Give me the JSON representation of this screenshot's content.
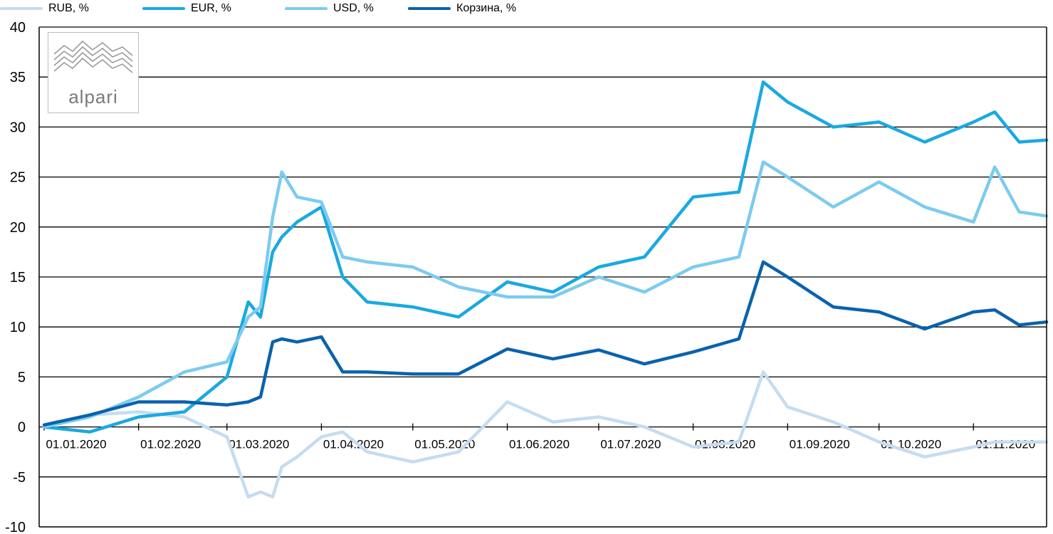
{
  "legend": [
    {
      "label": "RUB, %",
      "color": "#c5dcf0"
    },
    {
      "label": "EUR, %",
      "color": "#1aa9e0"
    },
    {
      "label": "USD, %",
      "color": "#7ccbef"
    },
    {
      "label": "Корзина, %",
      "color": "#0a62ad"
    }
  ],
  "logo": {
    "text": "alpari"
  },
  "chart_data": {
    "type": "line",
    "ylim": [
      -10,
      40
    ],
    "yticks": [
      40,
      35,
      30,
      25,
      20,
      15,
      10,
      5,
      0,
      -5,
      -10
    ],
    "xticks": [
      "01.01.2020",
      "01.02.2020",
      "01.03.2020",
      "01.04.2020",
      "01.05.2020",
      "01.06.2020",
      "01.07.2020",
      "01.08.2020",
      "01.09.2020",
      "01.10.2020",
      "01.11.2020"
    ],
    "grid": true,
    "x": [
      "2020-01-01",
      "2020-01-16",
      "2020-02-01",
      "2020-02-16",
      "2020-03-01",
      "2020-03-08",
      "2020-03-12",
      "2020-03-16",
      "2020-03-19",
      "2020-03-24",
      "2020-04-01",
      "2020-04-08",
      "2020-04-16",
      "2020-05-01",
      "2020-05-16",
      "2020-06-01",
      "2020-06-16",
      "2020-07-01",
      "2020-07-16",
      "2020-08-01",
      "2020-08-16",
      "2020-08-24",
      "2020-09-01",
      "2020-09-16",
      "2020-10-01",
      "2020-10-16",
      "2020-11-01",
      "2020-11-08",
      "2020-11-16",
      "2020-11-25"
    ],
    "series": [
      {
        "name": "RUB, %",
        "color": "#c5dcf0",
        "values": [
          0,
          1.2,
          1.5,
          1,
          -1,
          -7,
          -6.5,
          -7,
          -4,
          -3,
          -1,
          -0.5,
          -2.5,
          -3.5,
          -2.5,
          2.5,
          0.5,
          1,
          0,
          -2,
          -1.5,
          5.5,
          2,
          0.5,
          -1.5,
          -3,
          -2,
          -1.5,
          -1.5,
          -1.5
        ]
      },
      {
        "name": "EUR, %",
        "color": "#1aa9e0",
        "values": [
          0,
          -0.5,
          1,
          1.5,
          5,
          12.5,
          11,
          17.5,
          19,
          20.5,
          22,
          15,
          12.5,
          12,
          11,
          14.5,
          13.5,
          16,
          17,
          23,
          23.5,
          34.5,
          32.5,
          30,
          30.5,
          28.5,
          30.5,
          31.5,
          28.5,
          28.7
        ]
      },
      {
        "name": "USD, %",
        "color": "#7ccbef",
        "values": [
          0,
          1,
          3,
          5.5,
          6.5,
          11,
          12,
          21,
          25.5,
          23,
          22.5,
          17,
          16.5,
          16,
          14,
          13,
          13,
          15,
          13.5,
          16,
          17,
          26.5,
          25,
          22,
          24.5,
          22,
          20.5,
          26,
          21.5,
          21.1
        ]
      },
      {
        "name": "Корзина, %",
        "color": "#0a62ad",
        "values": [
          0.2,
          1.2,
          2.5,
          2.5,
          2.2,
          2.5,
          3,
          8.5,
          8.8,
          8.5,
          9,
          5.5,
          5.5,
          5.3,
          5.3,
          7.8,
          6.8,
          7.7,
          6.3,
          7.5,
          8.8,
          16.5,
          15,
          12,
          11.5,
          9.8,
          11.5,
          11.7,
          10.2,
          10.5
        ]
      }
    ]
  }
}
